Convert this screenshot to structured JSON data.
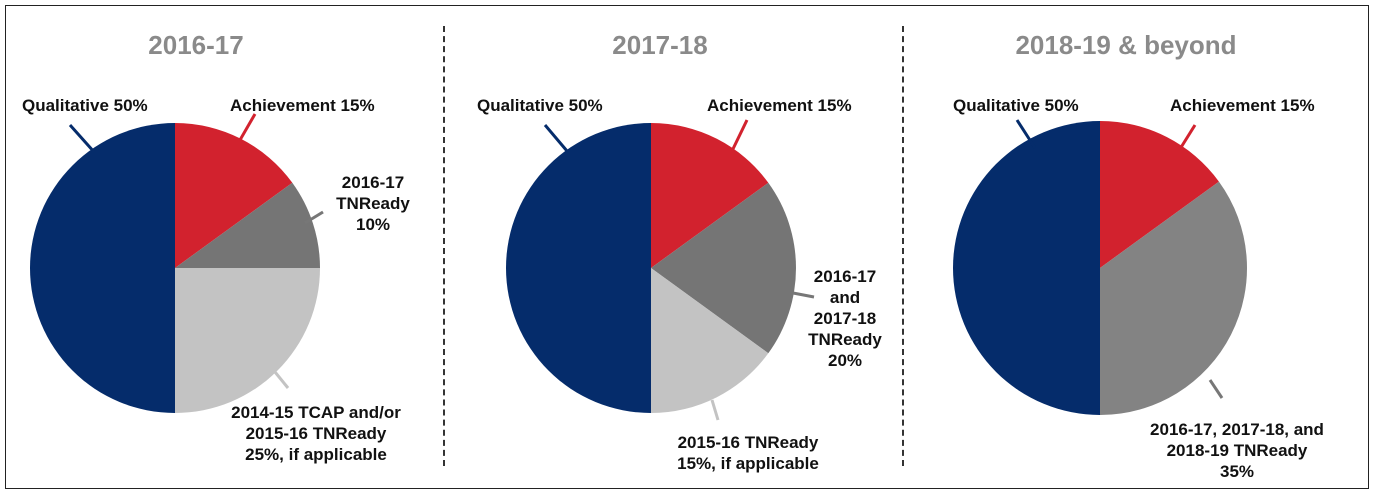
{
  "colors": {
    "qualitative": "#052c6b",
    "achievement": "#d2222e",
    "tnready_dark": "#757575",
    "tnready_light": "#c3c3c3",
    "tnready_mid": "#838383",
    "leader_qualitative": "#052c6b",
    "leader_achievement": "#d2222e",
    "leader_gray": "#777777",
    "leader_light_gray": "#c3c3c3"
  },
  "chart_data": [
    {
      "type": "pie",
      "title": "2016-17",
      "slices": [
        {
          "label": "Achievement 15%",
          "value": 15,
          "color": "#d2222e"
        },
        {
          "label": "2016-17\nTNReady\n10%",
          "value": 10,
          "color": "#757575"
        },
        {
          "label": "2014-15 TCAP and/or\n2015-16 TNReady\n25%, if applicable",
          "value": 25,
          "color": "#c3c3c3"
        },
        {
          "label": "Qualitative 50%",
          "value": 50,
          "color": "#052c6b"
        }
      ]
    },
    {
      "type": "pie",
      "title": "2017-18",
      "slices": [
        {
          "label": "Achievement 15%",
          "value": 15,
          "color": "#d2222e"
        },
        {
          "label": "2016-17\nand\n2017-18\nTNReady\n20%",
          "value": 20,
          "color": "#757575"
        },
        {
          "label": "2015-16 TNReady\n15%, if applicable",
          "value": 15,
          "color": "#c3c3c3"
        },
        {
          "label": "Qualitative 50%",
          "value": 50,
          "color": "#052c6b"
        }
      ]
    },
    {
      "type": "pie",
      "title": "2018-19 & beyond",
      "slices": [
        {
          "label": "Achievement 15%",
          "value": 15,
          "color": "#d2222e"
        },
        {
          "label": "2016-17, 2017-18, and\n2018-19 TNReady\n35%",
          "value": 35,
          "color": "#838383"
        },
        {
          "label": "Qualitative 50%",
          "value": 50,
          "color": "#052c6b"
        }
      ]
    }
  ]
}
